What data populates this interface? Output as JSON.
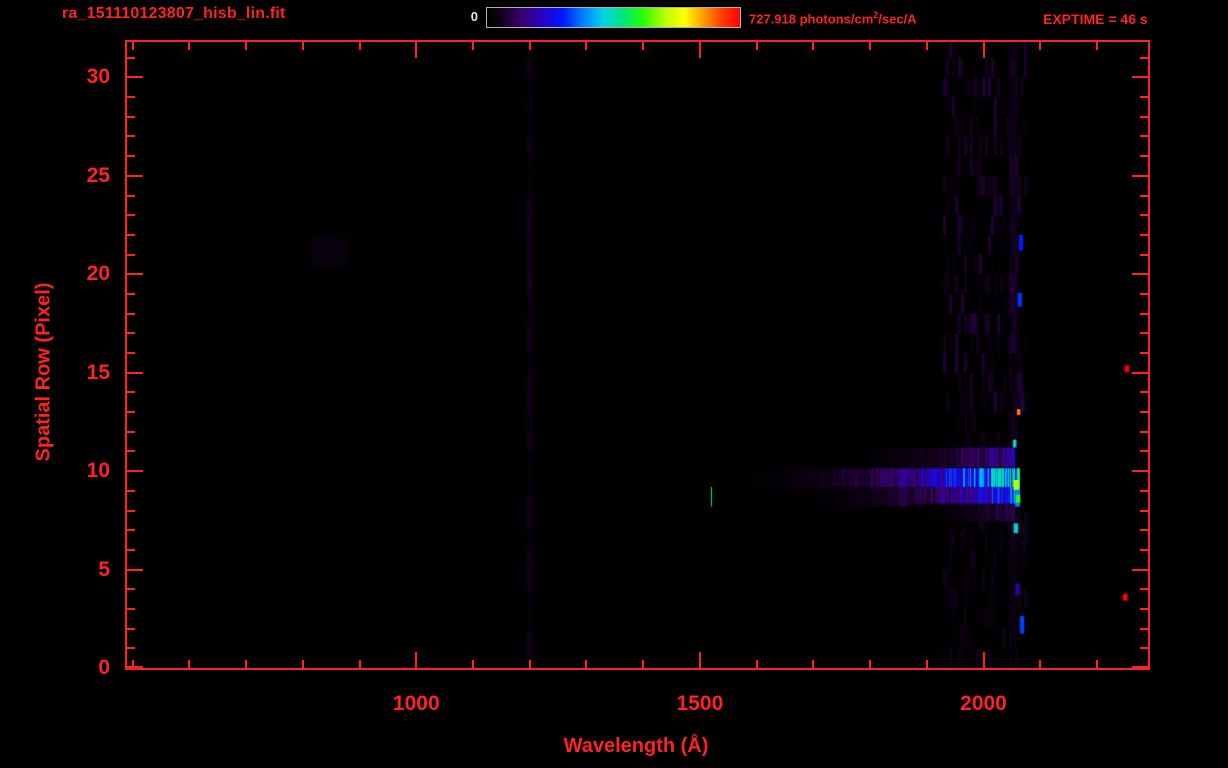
{
  "header": {
    "title": "ra_151110123807_hisb_lin.fit",
    "exptime": "EXPTIME = 46 s",
    "colorbar": {
      "min_label": "0",
      "max_prefix": "727.918 photons/cm",
      "max_sup": "2",
      "max_suffix": "/sec/A"
    }
  },
  "axes": {
    "x_label": "Wavelength (Å)",
    "y_label": "Spatial Row (Pixel)",
    "x_ticks": [
      1000,
      1500,
      2000
    ],
    "x_minor_step": 100,
    "y_ticks": [
      0,
      5,
      10,
      15,
      20,
      25,
      30
    ],
    "y_minor_step": 1,
    "xlim": [
      490,
      2290
    ],
    "ylim": [
      0,
      31.8
    ]
  },
  "colors": {
    "accent_red": "#ff2222",
    "background": "#000000",
    "colorbar_border": "#b0b0b0",
    "min_label_white": "#e8e8e8"
  },
  "chart_data": {
    "type": "heatmap",
    "title": "ra_151110123807_hisb_lin.fit",
    "xlabel": "Wavelength (Å)",
    "ylabel": "Spatial Row (Pixel)",
    "xlim": [
      490,
      2290
    ],
    "ylim": [
      0,
      31.8
    ],
    "grid": false,
    "colorbar": {
      "min": 0,
      "max": 727.918,
      "units": "photons/cm^2/sec/A",
      "position": "top"
    },
    "exptime_s": 46,
    "colormap_stops": [
      [
        0.0,
        "#000000"
      ],
      [
        0.06,
        "#14001e"
      ],
      [
        0.14,
        "#3c0070"
      ],
      [
        0.22,
        "#2800c8"
      ],
      [
        0.3,
        "#0018ff"
      ],
      [
        0.38,
        "#0080ff"
      ],
      [
        0.46,
        "#00d4e8"
      ],
      [
        0.54,
        "#00e87c"
      ],
      [
        0.62,
        "#2aff00"
      ],
      [
        0.7,
        "#b4ff00"
      ],
      [
        0.78,
        "#ffff00"
      ],
      [
        0.86,
        "#ff9600"
      ],
      [
        0.93,
        "#ff3c00"
      ],
      [
        1.0,
        "#ff0000"
      ]
    ],
    "features": {
      "spectrum_streaks": [
        {
          "row": 9.6,
          "half_height": 0.55,
          "wl_start": 1430,
          "wl_end": 2063,
          "peak_intensity": 0.48,
          "gamma": 3.0
        },
        {
          "row": 8.7,
          "half_height": 0.5,
          "wl_start": 1520,
          "wl_end": 2063,
          "peak_intensity": 0.34,
          "gamma": 3.2
        },
        {
          "row": 10.7,
          "half_height": 0.5,
          "wl_start": 1640,
          "wl_end": 2055,
          "peak_intensity": 0.18,
          "gamma": 3.0
        },
        {
          "row": 7.9,
          "half_height": 0.45,
          "wl_start": 1780,
          "wl_end": 2055,
          "peak_intensity": 0.11,
          "gamma": 3.0
        }
      ],
      "emission_lines_vertical": [
        {
          "wavelength": 1200,
          "width": 10,
          "row_start": 0,
          "row_end": 31.8,
          "intensity": 0.035,
          "label": "geocoronal Lyman-alpha"
        },
        {
          "wavelength": 1200,
          "width": 8,
          "row_start": 13,
          "row_end": 23,
          "intensity": 0.05,
          "label": "Lyman-alpha bright segment"
        },
        {
          "wavelength": 2052,
          "width": 14,
          "row_start": 0,
          "row_end": 31.8,
          "intensity": 0.05,
          "label": "detector-edge column"
        }
      ],
      "noise_band": {
        "wl_start": 1930,
        "wl_end": 2075,
        "row_start": 0,
        "row_end": 31.8,
        "max_intensity": 0.055,
        "boost_row_min": 13,
        "boost_factor": 1.7
      },
      "faint_smudge": {
        "wavelength": 845,
        "width_A": 60,
        "row": 21.2,
        "height_rows": 1.6,
        "intensity": 0.025
      },
      "speckles": [
        {
          "row": 9.3,
          "wavelength": 2058,
          "intensity": 0.7,
          "width_A": 10,
          "height_rows": 0.5
        },
        {
          "row": 8.6,
          "wavelength": 2061,
          "intensity": 0.62,
          "width_A": 8,
          "height_rows": 0.4
        },
        {
          "row": 11.4,
          "wavelength": 2055,
          "intensity": 0.5,
          "width_A": 6,
          "height_rows": 0.4
        },
        {
          "row": 7.1,
          "wavelength": 2057,
          "intensity": 0.45,
          "width_A": 8,
          "height_rows": 0.5
        },
        {
          "row": 21.6,
          "wavelength": 2066,
          "intensity": 0.3,
          "width_A": 8,
          "height_rows": 0.8
        },
        {
          "row": 18.7,
          "wavelength": 2064,
          "intensity": 0.32,
          "width_A": 8,
          "height_rows": 0.7
        },
        {
          "row": 2.2,
          "wavelength": 2068,
          "intensity": 0.33,
          "width_A": 8,
          "height_rows": 0.9
        },
        {
          "row": 4.0,
          "wavelength": 2060,
          "intensity": 0.18,
          "width_A": 8,
          "height_rows": 0.6
        },
        {
          "row": 13.0,
          "wavelength": 2062,
          "intensity": 0.88,
          "width_A": 6,
          "height_rows": 0.3
        },
        {
          "row": 15.2,
          "wavelength": 2253,
          "intensity": 1.0,
          "width_A": 8,
          "height_rows": 0.35
        },
        {
          "row": 3.6,
          "wavelength": 2250,
          "intensity": 1.0,
          "width_A": 8,
          "height_rows": 0.35
        }
      ]
    }
  }
}
